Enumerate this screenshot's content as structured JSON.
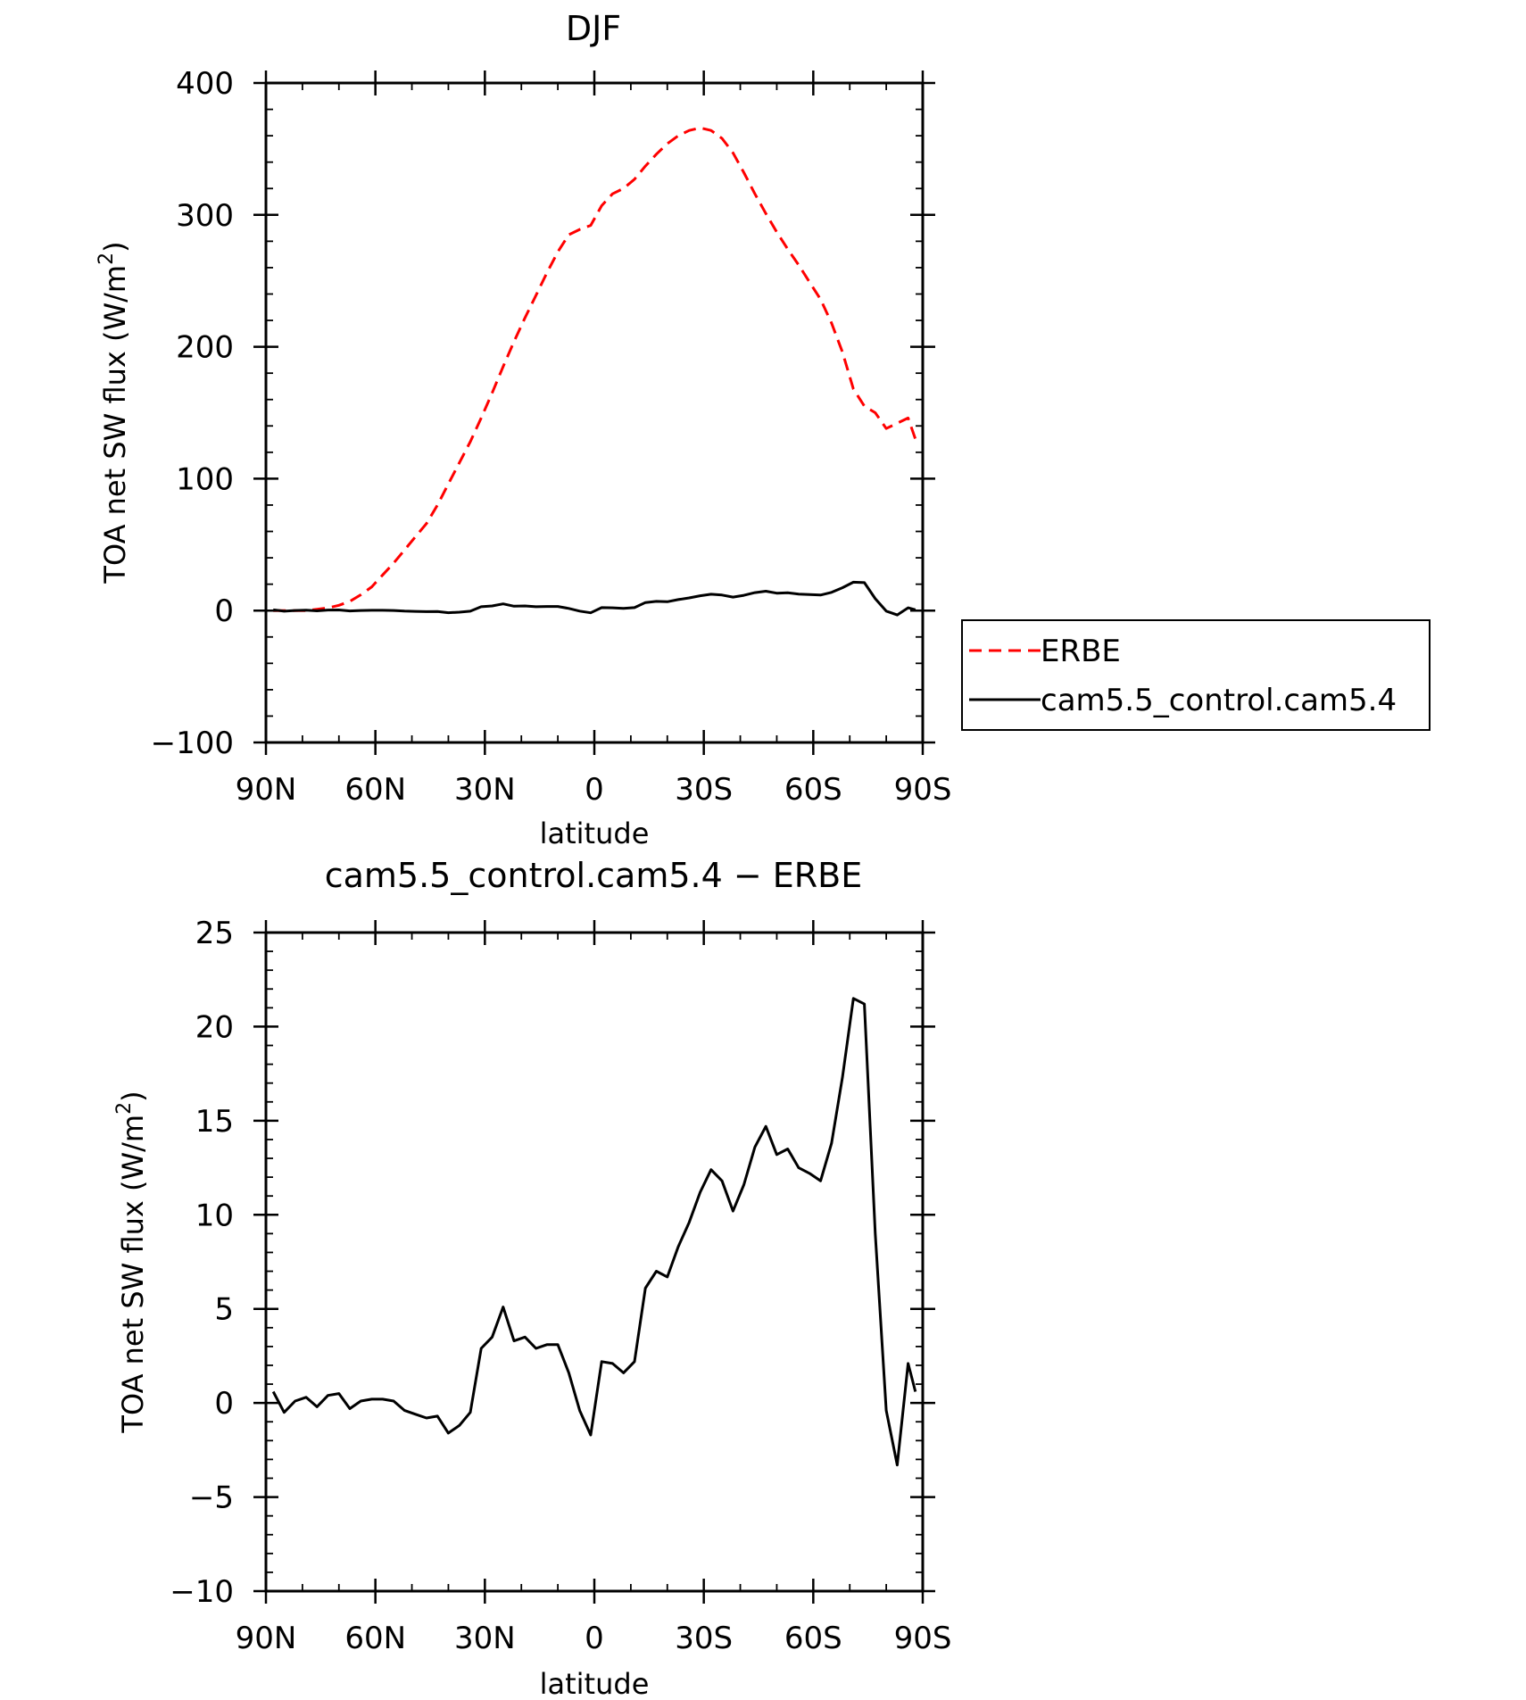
{
  "chart_data": [
    {
      "type": "line",
      "title": "DJF",
      "xlabel": "latitude",
      "ylabel_main": "TOA net SW flux (W/m",
      "ylabel_sup": "2",
      "ylabel_close": ")",
      "xlim": [
        -90,
        90
      ],
      "ylim": [
        -100,
        400
      ],
      "xticks": [
        -90,
        -60,
        -30,
        0,
        30,
        60,
        90
      ],
      "xtick_labels": [
        "90N",
        "60N",
        "30N",
        "0",
        "30S",
        "60S",
        "90S"
      ],
      "yticks": [
        -100,
        0,
        100,
        200,
        300,
        400
      ],
      "ytick_labels": [
        "−100",
        "0",
        "100",
        "200",
        "300",
        "400"
      ],
      "grid": false,
      "legend_position": "right, outside plot",
      "series": [
        {
          "name": "ERBE",
          "color": "#ff0000",
          "dash": "dashed",
          "x": [
            -88,
            -85,
            -82,
            -79,
            -76,
            -73,
            -70,
            -67,
            -64,
            -61,
            -58,
            -55,
            -52,
            -49,
            -46,
            -43,
            -40,
            -37,
            -34,
            -31,
            -28,
            -25,
            -22,
            -19,
            -16,
            -13,
            -10,
            -7,
            -4,
            -1,
            2,
            5,
            8,
            11,
            14,
            17,
            20,
            23,
            26,
            29,
            32,
            35,
            38,
            41,
            44,
            47,
            50,
            53,
            56,
            59,
            62,
            65,
            68,
            71,
            74,
            77,
            80,
            83,
            86,
            88
          ],
          "values": [
            0,
            0,
            0,
            0,
            1,
            2,
            4,
            7,
            12,
            18,
            27,
            36,
            46,
            56,
            66,
            80,
            96,
            112,
            128,
            146,
            165,
            185,
            204,
            222,
            239,
            256,
            272,
            285,
            289,
            292,
            307,
            316,
            320,
            327,
            337,
            346,
            354,
            360,
            364,
            366,
            364,
            358,
            347,
            332,
            316,
            301,
            287,
            274,
            262,
            249,
            236,
            218,
            196,
            168,
            155,
            150,
            138,
            142,
            146,
            130
          ]
        },
        {
          "name": "cam5.5_control.cam5.4",
          "color": "#000000",
          "dash": "solid",
          "x": [
            -88,
            -85,
            -82,
            -79,
            -76,
            -73,
            -70,
            -67,
            -64,
            -61,
            -58,
            -55,
            -52,
            -49,
            -46,
            -43,
            -40,
            -37,
            -34,
            -31,
            -28,
            -25,
            -22,
            -19,
            -16,
            -13,
            -10,
            -7,
            -4,
            -1,
            2,
            5,
            8,
            11,
            14,
            17,
            20,
            23,
            26,
            29,
            32,
            35,
            38,
            41,
            44,
            47,
            50,
            53,
            56,
            59,
            62,
            65,
            68,
            71,
            74,
            77,
            80,
            83,
            86,
            88
          ],
          "values": [
            0.6,
            -0.5,
            0.1,
            0.3,
            -0.2,
            0.4,
            0.5,
            -0.3,
            0.1,
            0.2,
            0.2,
            0.1,
            -0.4,
            -0.6,
            -0.8,
            -0.7,
            -1.6,
            -1.2,
            -0.5,
            2.9,
            3.5,
            5.1,
            3.3,
            3.5,
            2.9,
            3.1,
            3.1,
            1.6,
            -0.4,
            -1.7,
            2.2,
            2.1,
            1.6,
            2.2,
            6.1,
            7.0,
            6.7,
            8.3,
            9.6,
            11.2,
            12.4,
            11.8,
            10.2,
            11.6,
            13.6,
            14.7,
            13.2,
            13.5,
            12.5,
            12.2,
            11.8,
            13.8,
            17.3,
            21.5,
            21.2,
            9.0,
            -0.4,
            -3.3,
            2.1,
            0.6
          ]
        }
      ]
    },
    {
      "type": "line",
      "title": "cam5.5_control.cam5.4 − ERBE",
      "xlabel": "latitude",
      "ylabel_main": "TOA net SW flux (W/m",
      "ylabel_sup": "2",
      "ylabel_close": ")",
      "xlim": [
        -90,
        90
      ],
      "ylim": [
        -10,
        25
      ],
      "xticks": [
        -90,
        -60,
        -30,
        0,
        30,
        60,
        90
      ],
      "xtick_labels": [
        "90N",
        "60N",
        "30N",
        "0",
        "30S",
        "60S",
        "90S"
      ],
      "yticks": [
        -10,
        -5,
        0,
        5,
        10,
        15,
        20,
        25
      ],
      "ytick_labels": [
        "−10",
        "−5",
        "0",
        "5",
        "10",
        "15",
        "20",
        "25"
      ],
      "grid": false,
      "series": [
        {
          "color": "#000000",
          "dash": "solid",
          "x": [
            -88,
            -85,
            -82,
            -79,
            -76,
            -73,
            -70,
            -67,
            -64,
            -61,
            -58,
            -55,
            -52,
            -49,
            -46,
            -43,
            -40,
            -37,
            -34,
            -31,
            -28,
            -25,
            -22,
            -19,
            -16,
            -13,
            -10,
            -7,
            -4,
            -1,
            2,
            5,
            8,
            11,
            14,
            17,
            20,
            23,
            26,
            29,
            32,
            35,
            38,
            41,
            44,
            47,
            50,
            53,
            56,
            59,
            62,
            65,
            68,
            71,
            74,
            77,
            80,
            83,
            86,
            88
          ],
          "values": [
            0.6,
            -0.5,
            0.1,
            0.3,
            -0.2,
            0.4,
            0.5,
            -0.3,
            0.1,
            0.2,
            0.2,
            0.1,
            -0.4,
            -0.6,
            -0.8,
            -0.7,
            -1.6,
            -1.2,
            -0.5,
            2.9,
            3.5,
            5.1,
            3.3,
            3.5,
            2.9,
            3.1,
            3.1,
            1.6,
            -0.4,
            -1.7,
            2.2,
            2.1,
            1.6,
            2.2,
            6.1,
            7.0,
            6.7,
            8.3,
            9.6,
            11.2,
            12.4,
            11.8,
            10.2,
            11.6,
            13.6,
            14.7,
            13.2,
            13.5,
            12.5,
            12.2,
            11.8,
            13.8,
            17.3,
            21.5,
            21.2,
            9.0,
            -0.4,
            -3.3,
            2.1,
            0.6
          ]
        }
      ]
    }
  ]
}
